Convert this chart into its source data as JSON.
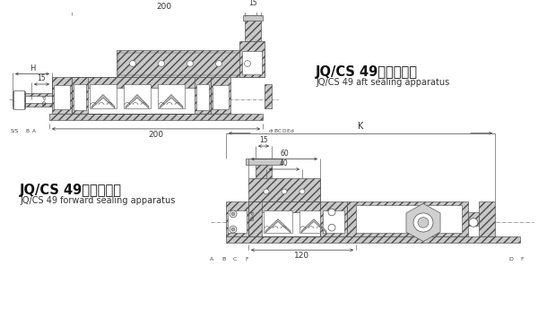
{
  "bg_color": "#ffffff",
  "lc": "#4a4a4a",
  "gray_fill": "#c8c8c8",
  "gray_med": "#b0b0b0",
  "white": "#ffffff",
  "title1_cn": "JQ/CS 49后密封装置",
  "title1_en": "JQ/CS 49 aft sealing apparatus",
  "title2_cn": "JQ/CS 49前密封装置",
  "title2_en": "JQ/CS 49 forward sealing apparatus",
  "upper_notes_right": [
    "d₁",
    "B",
    "C",
    "D",
    "E",
    "d"
  ],
  "lower_bot_left": [
    "A",
    "B",
    "C",
    "F"
  ],
  "lower_bot_right": [
    "D",
    "F"
  ]
}
